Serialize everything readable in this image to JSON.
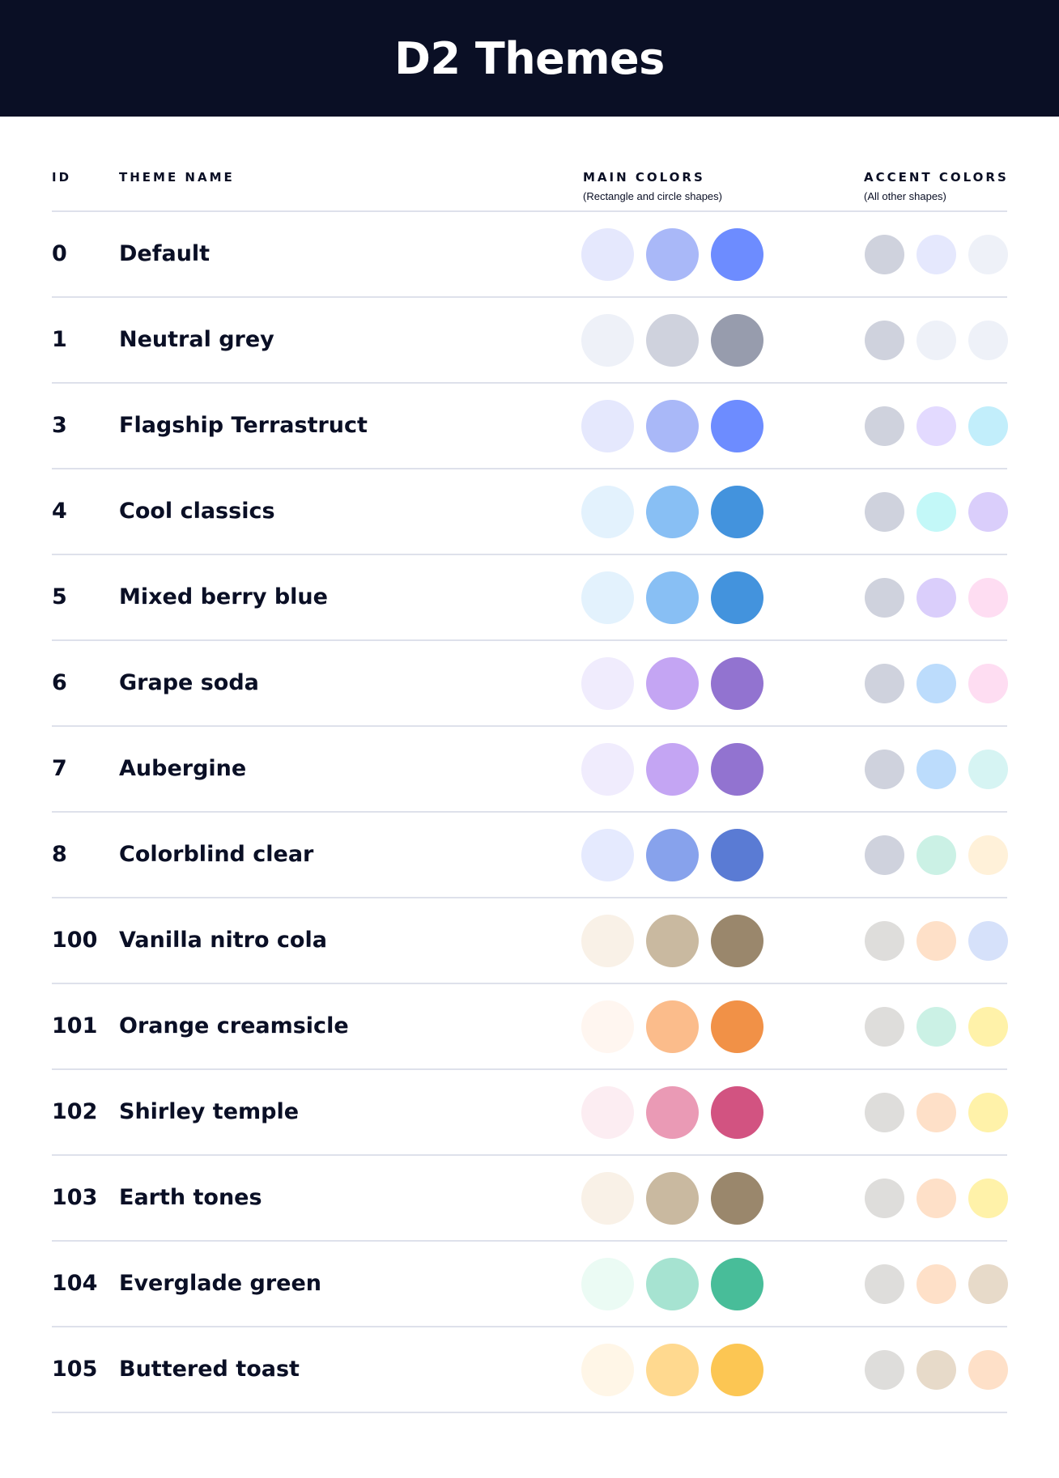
{
  "title": "D2 Themes",
  "columns": {
    "id": "ID",
    "name": "THEME NAME",
    "main": "MAIN COLORS",
    "main_sub": "(Rectangle and circle shapes)",
    "accent": "ACCENT COLORS",
    "accent_sub": "(All other shapes)"
  },
  "themes": [
    {
      "id": "0",
      "name": "Default",
      "main": [
        "#E5E8FD",
        "#A9B8F8",
        "#6D8CFF"
      ],
      "accent": [
        "#CFD2DD",
        "#E5E8FD",
        "#EEF1F8"
      ]
    },
    {
      "id": "1",
      "name": "Neutral grey",
      "main": [
        "#EEF1F8",
        "#CFD2DD",
        "#979CAD"
      ],
      "accent": [
        "#CFD2DD",
        "#EEF1F8",
        "#EEF1F8"
      ]
    },
    {
      "id": "3",
      "name": "Flagship Terrastruct",
      "main": [
        "#E5E8FD",
        "#A9B8F8",
        "#6D8CFF"
      ],
      "accent": [
        "#CFD2DD",
        "#E3DAFF",
        "#C2EEFB"
      ]
    },
    {
      "id": "4",
      "name": "Cool classics",
      "main": [
        "#E3F2FD",
        "#88BFF4",
        "#4393DD"
      ],
      "accent": [
        "#CFD2DD",
        "#C3F8F8",
        "#DACEFB"
      ]
    },
    {
      "id": "5",
      "name": "Mixed berry blue",
      "main": [
        "#E3F2FD",
        "#88BFF4",
        "#4393DD"
      ],
      "accent": [
        "#CFD2DD",
        "#DACEFB",
        "#FEDDF2"
      ]
    },
    {
      "id": "6",
      "name": "Grape soda",
      "main": [
        "#F0ECFD",
        "#C4A5F3",
        "#9273D0"
      ],
      "accent": [
        "#CFD2DD",
        "#BCDCFC",
        "#FEDDF2"
      ]
    },
    {
      "id": "7",
      "name": "Aubergine",
      "main": [
        "#F0ECFD",
        "#C4A5F3",
        "#9273D0"
      ],
      "accent": [
        "#CFD2DD",
        "#BCDCFC",
        "#D6F4F3"
      ]
    },
    {
      "id": "8",
      "name": "Colorblind clear",
      "main": [
        "#E5EAFE",
        "#87A2EC",
        "#5A7BD4"
      ],
      "accent": [
        "#CFD2DD",
        "#CBF1E5",
        "#FFF1D9"
      ]
    },
    {
      "id": "100",
      "name": "Vanilla nitro cola",
      "main": [
        "#F9F1E7",
        "#C9B9A0",
        "#9A876C"
      ],
      "accent": [
        "#DEDDDB",
        "#FEE0C8",
        "#D6E1FA"
      ]
    },
    {
      "id": "101",
      "name": "Orange creamsicle",
      "main": [
        "#FFF6F0",
        "#FBBC8B",
        "#F19147"
      ],
      "accent": [
        "#DEDDDB",
        "#CBF1E5",
        "#FFF2A9"
      ]
    },
    {
      "id": "102",
      "name": "Shirley temple",
      "main": [
        "#FCEDF2",
        "#EA9AB5",
        "#D25381"
      ],
      "accent": [
        "#DEDDDB",
        "#FEE0C8",
        "#FFF2A9"
      ]
    },
    {
      "id": "103",
      "name": "Earth tones",
      "main": [
        "#F9F1E7",
        "#C9B9A0",
        "#9A876C"
      ],
      "accent": [
        "#DEDDDB",
        "#FEE0C8",
        "#FFF2A9"
      ]
    },
    {
      "id": "104",
      "name": "Everglade green",
      "main": [
        "#EBFBF4",
        "#A6E3D1",
        "#48BD99"
      ],
      "accent": [
        "#DEDDDB",
        "#FEE0C8",
        "#E7DAC9"
      ]
    },
    {
      "id": "105",
      "name": "Buttered toast",
      "main": [
        "#FFF6E7",
        "#FFD98F",
        "#FCC653"
      ],
      "accent": [
        "#DEDDDB",
        "#E7DAC9",
        "#FEE0C8"
      ]
    }
  ]
}
